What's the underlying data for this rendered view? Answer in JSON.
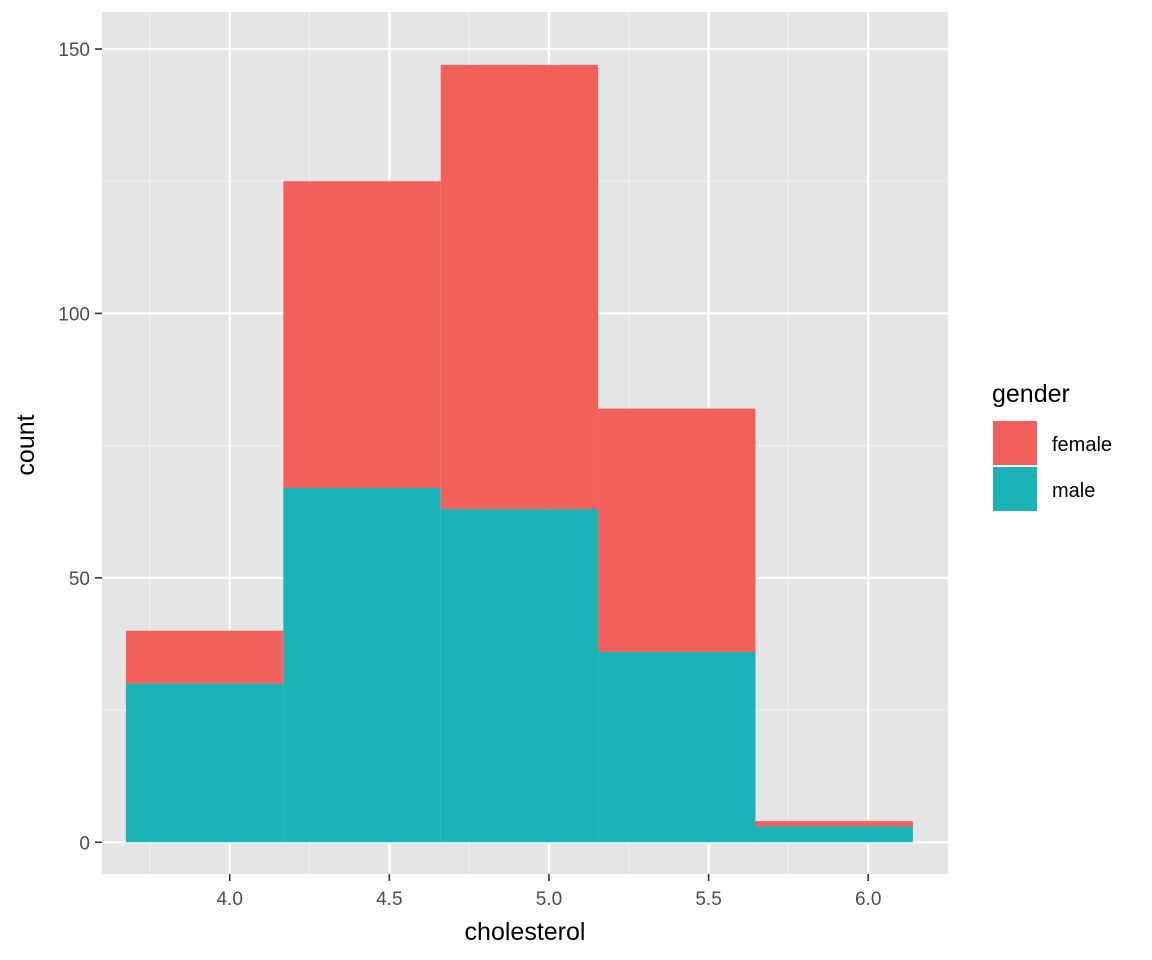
{
  "chart_data": {
    "type": "bar",
    "subtype": "stacked-histogram",
    "xlabel": "cholesterol",
    "ylabel": "count",
    "xlim": [
      3.6,
      6.25
    ],
    "ylim": [
      -6,
      157
    ],
    "x_ticks": [
      4.0,
      4.5,
      5.0,
      5.5,
      6.0
    ],
    "x_tick_labels": [
      "4.0",
      "4.5",
      "5.0",
      "5.5",
      "6.0"
    ],
    "y_ticks": [
      0,
      50,
      100,
      150
    ],
    "y_tick_labels": [
      "0",
      "50",
      "100",
      "150"
    ],
    "grid": true,
    "bins": [
      {
        "xmin": 3.675,
        "xmax": 4.168
      },
      {
        "xmin": 4.168,
        "xmax": 4.661
      },
      {
        "xmin": 4.661,
        "xmax": 5.154
      },
      {
        "xmin": 5.154,
        "xmax": 5.647
      },
      {
        "xmin": 5.647,
        "xmax": 6.14
      }
    ],
    "series": [
      {
        "name": "male",
        "color": "#19B3B8",
        "values": [
          30,
          67,
          63,
          36,
          3
        ]
      },
      {
        "name": "female",
        "color": "#F2605C",
        "values": [
          10,
          58,
          84,
          46,
          1
        ]
      }
    ],
    "legend": {
      "title": "gender",
      "position": "right",
      "entries": [
        {
          "label": "female",
          "color": "#F2605C"
        },
        {
          "label": "male",
          "color": "#19B3B8"
        }
      ]
    },
    "colors": {
      "panel": "#E5E5E5",
      "grid_major": "#FFFFFF",
      "grid_minor": "#F2F2F2"
    }
  }
}
